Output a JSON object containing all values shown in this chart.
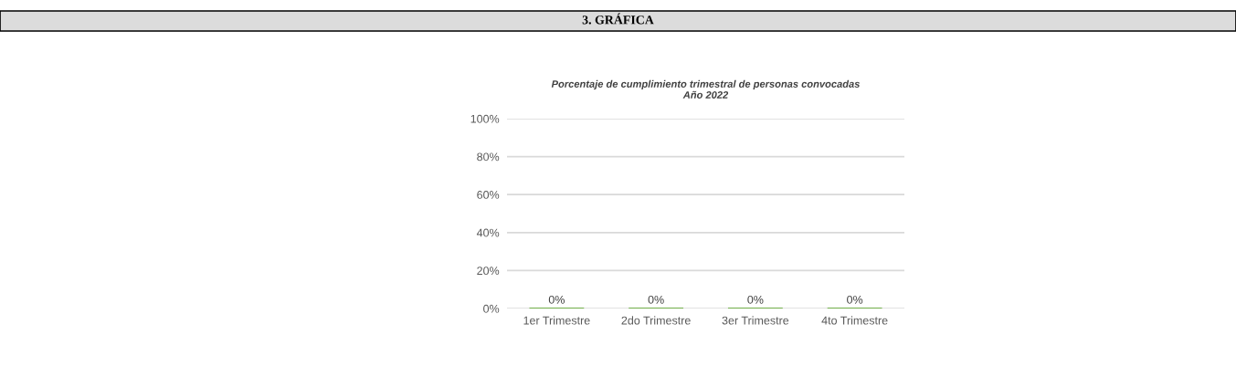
{
  "chart_data": {
    "type": "bar",
    "title": "3. GRÁFICA",
    "subtitle": "Porcentaje de cumplimiento trimestral de personas convocadas\nAño 2022",
    "categories": [
      "1er Trimestre",
      "2do Trimestre",
      "3er Trimestre",
      "4to Trimestre"
    ],
    "values": [
      0,
      0,
      0,
      0
    ],
    "color": "#70ad47",
    "value_labels": [
      "0%",
      "0%",
      "0%",
      "0%"
    ],
    "ylim": [
      0,
      100
    ],
    "yticks": [
      {
        "value": 0,
        "label": "0%"
      },
      {
        "value": 20,
        "label": "20%"
      },
      {
        "value": 40,
        "label": "40%"
      },
      {
        "value": 60,
        "label": "60%"
      },
      {
        "value": 80,
        "label": "80%"
      },
      {
        "value": 100,
        "label": "100%"
      }
    ],
    "grid": "y",
    "legend": false
  }
}
